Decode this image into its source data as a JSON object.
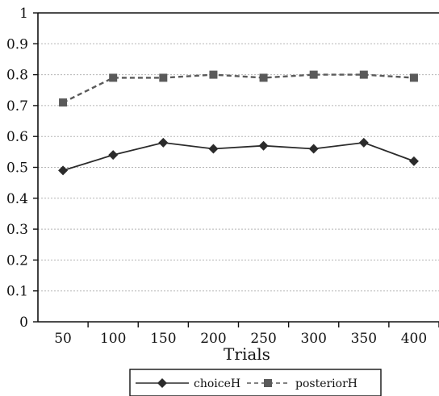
{
  "chart_data": {
    "type": "line",
    "title": "",
    "xlabel": "Trials",
    "ylabel": "",
    "categories": [
      "50",
      "100",
      "150",
      "200",
      "250",
      "300",
      "350",
      "400"
    ],
    "ylim": [
      0,
      1
    ],
    "yticks": [
      "0",
      "0.1",
      "0.2",
      "0.3",
      "0.4",
      "0.5",
      "0.6",
      "0.7",
      "0.8",
      "0.9",
      "1"
    ],
    "grid": true,
    "legend_position": "bottom",
    "series": [
      {
        "name": "choiceH",
        "marker": "diamond",
        "line_style": "solid",
        "color": "#2b2b2b",
        "values": [
          0.49,
          0.54,
          0.58,
          0.56,
          0.57,
          0.56,
          0.58,
          0.52
        ]
      },
      {
        "name": "posteriorH",
        "marker": "square",
        "line_style": "dashed",
        "color": "#5a5a5a",
        "values": [
          0.71,
          0.79,
          0.79,
          0.8,
          0.79,
          0.8,
          0.8,
          0.79
        ]
      }
    ]
  }
}
